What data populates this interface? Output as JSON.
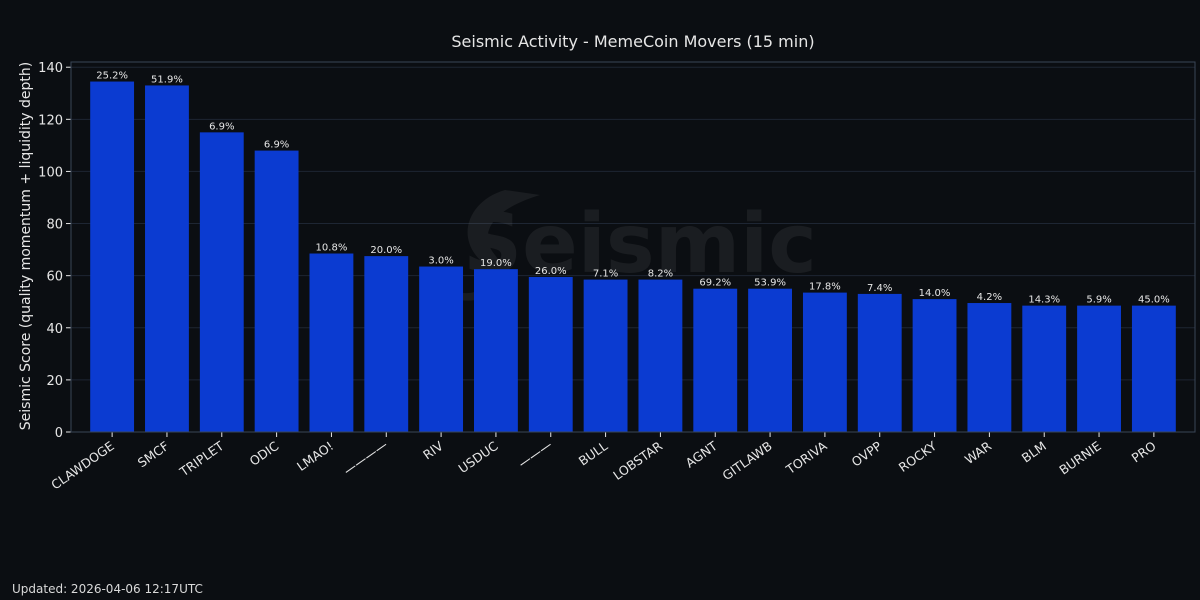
{
  "chart_data": {
    "type": "bar",
    "title": "Seismic Activity - MemeCoin Movers (15 min)",
    "xlabel": "",
    "ylabel": "Seismic Score (quality momentum + liquidity depth)",
    "ylim": [
      0,
      142
    ],
    "yticks": [
      0,
      20,
      40,
      60,
      80,
      100,
      120,
      140
    ],
    "grid": true,
    "categories": [
      "CLAWDOGE",
      "SMCF",
      "TRIPLET",
      "ODIC",
      "LMAO!",
      "一一一一",
      "RIV",
      "USDUC",
      "一一一",
      "BULL",
      "LOBSTAR",
      "AGNT",
      "GITLAWB",
      "TORIVA",
      "OVPP",
      "ROCKY",
      "WAR",
      "BLM",
      "BURNIE",
      "PRO"
    ],
    "values": [
      134.5,
      133,
      115,
      108,
      68.5,
      67.5,
      63.5,
      62.5,
      59.5,
      58.5,
      58.5,
      55,
      55,
      53.5,
      53,
      51,
      49.5,
      48.5,
      48.5,
      48.5
    ],
    "bar_labels": [
      "25.2%",
      "51.9%",
      "6.9%",
      "6.9%",
      "10.8%",
      "20.0%",
      "3.0%",
      "19.0%",
      "26.0%",
      "7.1%",
      "8.2%",
      "69.2%",
      "53.9%",
      "17.8%",
      "7.4%",
      "14.0%",
      "4.2%",
      "14.3%",
      "5.9%",
      "45.0%"
    ],
    "colors": {
      "bar": "#0b3bd1",
      "background": "#0b0e12",
      "grid": "#1e2633",
      "axis": "#3a4556",
      "text": "#e6e6e6"
    }
  },
  "watermark": "Seismic",
  "footer": {
    "updated": "Updated: 2026-04-06 12:17UTC"
  }
}
